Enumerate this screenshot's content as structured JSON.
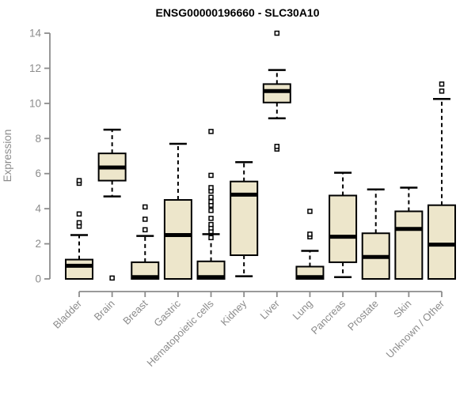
{
  "title": "ENSG00000196660 - SLC30A10",
  "chart_data": {
    "type": "boxplot",
    "title": "ENSG00000196660 - SLC30A10",
    "xlabel": "",
    "ylabel": "Expression",
    "ylim": [
      0,
      14
    ],
    "yticks": [
      0,
      2,
      4,
      6,
      8,
      10,
      12,
      14
    ],
    "grid": false,
    "legend": null,
    "style": {
      "box_fill": "#EDE6CB",
      "box_stroke": "#000000",
      "median_color": "#000000",
      "whisker_color": "#000000",
      "outlier_fill": "#FFFFFF",
      "outlier_stroke": "#000000",
      "axis_color": "#8C8C8C",
      "text_color": "#8C8C8C",
      "title_color": "#000000"
    },
    "categories": [
      "Bladder",
      "Brain",
      "Breast",
      "Gastric",
      "Hematopoietic cells",
      "Kidney",
      "Liver",
      "Lung",
      "Pancreas",
      "Prostate",
      "Skin",
      "Unknown / Other"
    ],
    "series": [
      {
        "name": "Bladder",
        "whisker_low": 0,
        "q1": 0,
        "median": 0.75,
        "q3": 1.1,
        "whisker_high": 2.5,
        "outliers": [
          3.0,
          3.2,
          3.7,
          5.45,
          5.6
        ]
      },
      {
        "name": "Brain",
        "whisker_low": 4.7,
        "q1": 5.6,
        "median": 6.35,
        "q3": 7.15,
        "whisker_high": 8.5,
        "outliers": [
          0.05
        ]
      },
      {
        "name": "Breast",
        "whisker_low": 0,
        "q1": 0,
        "median": 0.1,
        "q3": 0.95,
        "whisker_high": 2.45,
        "outliers": [
          2.8,
          3.4,
          4.1
        ]
      },
      {
        "name": "Gastric",
        "whisker_low": 0,
        "q1": 0,
        "median": 2.5,
        "q3": 4.5,
        "whisker_high": 7.7,
        "outliers": []
      },
      {
        "name": "Hematopoietic cells",
        "whisker_low": 0,
        "q1": 0,
        "median": 0.1,
        "q3": 1.0,
        "whisker_high": 2.55,
        "outliers": [
          2.35,
          2.7,
          2.9,
          3.1,
          3.45,
          3.9,
          4.2,
          4.4,
          4.65,
          5.0,
          5.2,
          5.9,
          8.4
        ]
      },
      {
        "name": "Kidney",
        "whisker_low": 0.15,
        "q1": 1.35,
        "median": 4.8,
        "q3": 5.55,
        "whisker_high": 6.65,
        "outliers": []
      },
      {
        "name": "Liver",
        "whisker_low": 9.15,
        "q1": 10.05,
        "median": 10.7,
        "q3": 11.1,
        "whisker_high": 11.9,
        "outliers": [
          7.4,
          7.55,
          14.0
        ]
      },
      {
        "name": "Lung",
        "whisker_low": 0,
        "q1": 0,
        "median": 0.1,
        "q3": 0.7,
        "whisker_high": 1.6,
        "outliers": [
          2.4,
          2.55,
          3.85
        ]
      },
      {
        "name": "Pancreas",
        "whisker_low": 0.1,
        "q1": 0.95,
        "median": 2.4,
        "q3": 4.75,
        "whisker_high": 6.05,
        "outliers": []
      },
      {
        "name": "Prostate",
        "whisker_low": 0,
        "q1": 0,
        "median": 1.25,
        "q3": 2.6,
        "whisker_high": 5.1,
        "outliers": []
      },
      {
        "name": "Skin",
        "whisker_low": 0,
        "q1": 0,
        "median": 2.85,
        "q3": 3.85,
        "whisker_high": 5.2,
        "outliers": []
      },
      {
        "name": "Unknown / Other",
        "whisker_low": 0,
        "q1": 0,
        "median": 1.95,
        "q3": 4.2,
        "whisker_high": 10.25,
        "outliers": [
          10.7,
          11.1
        ]
      }
    ]
  }
}
